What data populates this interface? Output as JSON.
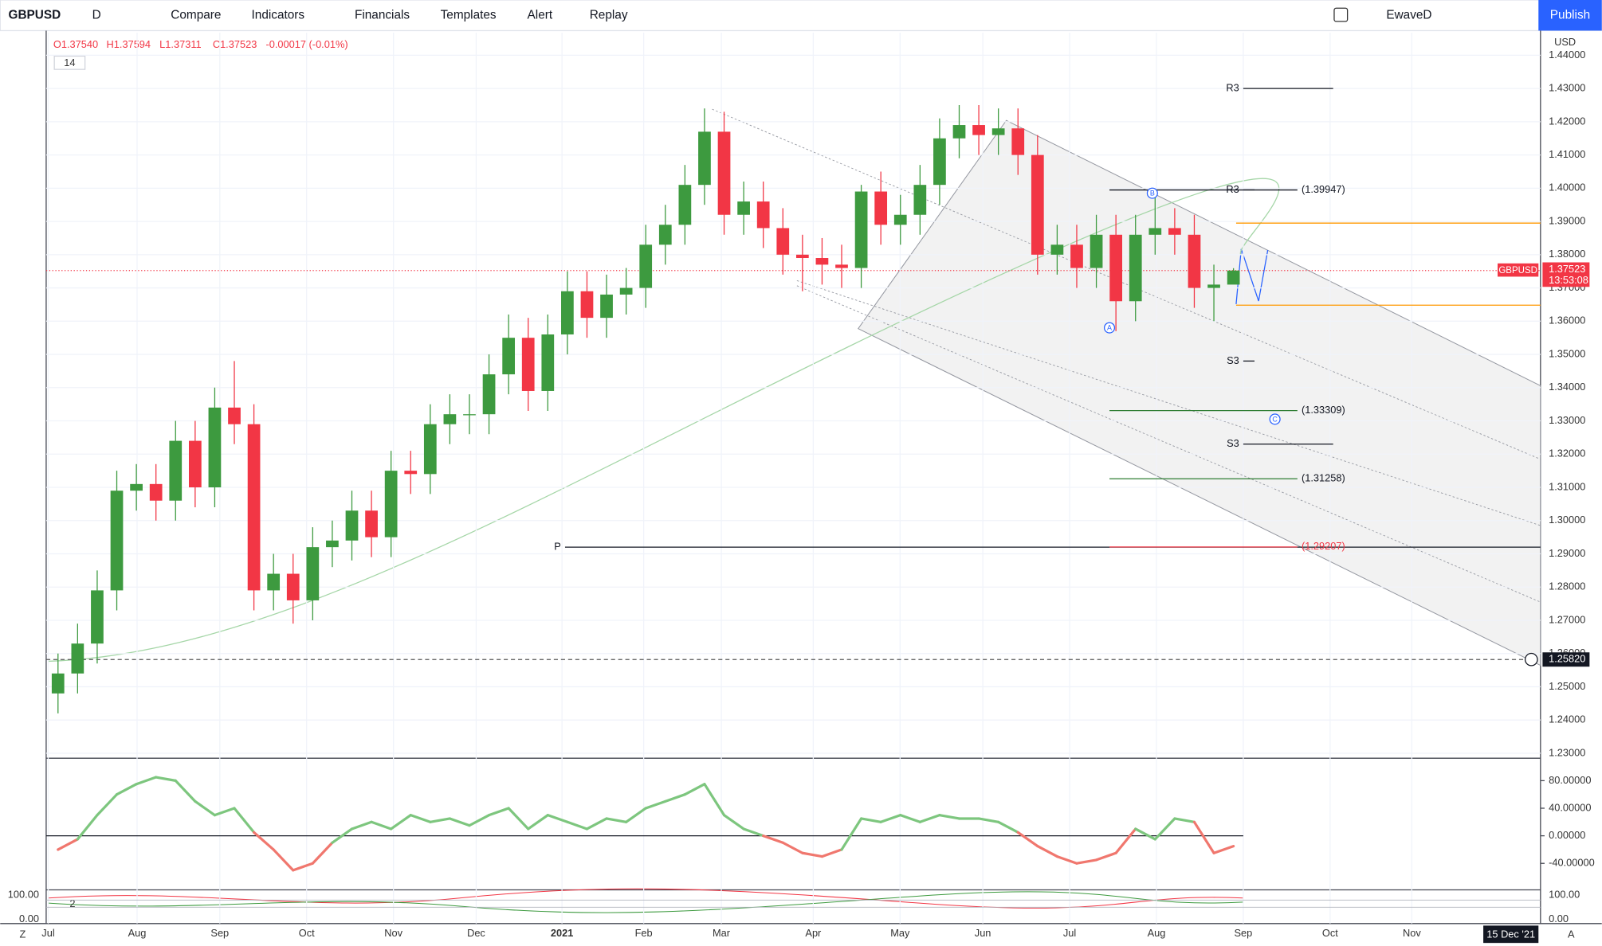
{
  "toolbar": {
    "symbol": "GBPUSD",
    "interval": "D",
    "buttons": [
      "Compare",
      "Indicators",
      "Financials",
      "Templates",
      "Alert",
      "Replay"
    ],
    "layout": "EwaveD",
    "publish": "Publish"
  },
  "chart_data": {
    "type": "candlestick",
    "legend": [
      "O1.37540",
      "H1.37594",
      "L1.37311",
      "C1.37523",
      "-0.00017 (-0.01%)"
    ],
    "indicator_badge": "14",
    "currency": "USD",
    "up_color": "#3d9a3f",
    "down_color": "#f23645",
    "categories": [
      null,
      null,
      null,
      null,
      null,
      null,
      null,
      null,
      null,
      null,
      null,
      null,
      null,
      null,
      null,
      null,
      null,
      null,
      null,
      null,
      null,
      null,
      null,
      null,
      null,
      null,
      null,
      null,
      null,
      null,
      null,
      null,
      null,
      null,
      null,
      null,
      null,
      null,
      null,
      null,
      null,
      null,
      null,
      null,
      null,
      null,
      null,
      null,
      null,
      null,
      null,
      null,
      null,
      null,
      null,
      null,
      null,
      null,
      null,
      null,
      null
    ],
    "open": [
      1.248,
      1.254,
      1.263,
      1.279,
      1.309,
      1.311,
      1.306,
      1.324,
      1.31,
      1.334,
      1.329,
      1.279,
      1.284,
      1.276,
      1.292,
      1.294,
      1.303,
      1.295,
      1.315,
      1.314,
      1.329,
      1.332,
      1.332,
      1.344,
      1.355,
      1.339,
      1.356,
      1.369,
      1.361,
      1.368,
      1.37,
      1.383,
      1.389,
      1.401,
      1.417,
      1.392,
      1.396,
      1.388,
      1.38,
      1.379,
      1.377,
      1.376,
      1.399,
      1.389,
      1.392,
      1.401,
      1.415,
      1.419,
      1.416,
      1.418,
      1.41,
      1.38,
      1.383,
      1.376,
      1.386,
      1.366,
      1.386,
      1.388,
      1.386,
      1.37,
      1.371
    ],
    "high": [
      1.26,
      1.269,
      1.285,
      1.315,
      1.317,
      1.317,
      1.33,
      1.33,
      1.34,
      1.348,
      1.335,
      1.29,
      1.29,
      1.298,
      1.3,
      1.309,
      1.309,
      1.321,
      1.321,
      1.335,
      1.338,
      1.338,
      1.35,
      1.362,
      1.361,
      1.362,
      1.375,
      1.375,
      1.374,
      1.376,
      1.389,
      1.395,
      1.407,
      1.424,
      1.423,
      1.402,
      1.402,
      1.394,
      1.386,
      1.385,
      1.383,
      1.401,
      1.405,
      1.398,
      1.407,
      1.421,
      1.425,
      1.425,
      1.424,
      1.424,
      1.416,
      1.389,
      1.389,
      1.392,
      1.392,
      1.392,
      1.398,
      1.394,
      1.392,
      1.377,
      1.37594
    ],
    "low": [
      1.242,
      1.248,
      1.257,
      1.273,
      1.303,
      1.3,
      1.3,
      1.304,
      1.304,
      1.323,
      1.273,
      1.273,
      1.269,
      1.27,
      1.286,
      1.288,
      1.289,
      1.289,
      1.308,
      1.308,
      1.323,
      1.326,
      1.326,
      1.338,
      1.333,
      1.333,
      1.35,
      1.355,
      1.355,
      1.362,
      1.364,
      1.377,
      1.383,
      1.395,
      1.386,
      1.386,
      1.382,
      1.374,
      1.369,
      1.371,
      1.37,
      1.37,
      1.383,
      1.383,
      1.386,
      1.395,
      1.409,
      1.41,
      1.41,
      1.404,
      1.374,
      1.374,
      1.37,
      1.37,
      1.357,
      1.36,
      1.38,
      1.38,
      1.364,
      1.36,
      1.37311
    ],
    "close": [
      1.254,
      1.263,
      1.279,
      1.309,
      1.311,
      1.306,
      1.324,
      1.31,
      1.334,
      1.329,
      1.279,
      1.284,
      1.276,
      1.292,
      1.294,
      1.303,
      1.295,
      1.315,
      1.314,
      1.329,
      1.332,
      1.332,
      1.344,
      1.355,
      1.339,
      1.356,
      1.369,
      1.361,
      1.368,
      1.37,
      1.383,
      1.389,
      1.401,
      1.417,
      1.392,
      1.396,
      1.388,
      1.38,
      1.379,
      1.377,
      1.376,
      1.399,
      1.389,
      1.392,
      1.401,
      1.415,
      1.419,
      1.416,
      1.418,
      1.41,
      1.38,
      1.383,
      1.376,
      1.386,
      1.366,
      1.386,
      1.388,
      1.386,
      1.37,
      1.371,
      1.37523
    ],
    "ylim": [
      1.2285,
      1.4468
    ],
    "yticks": [
      {
        "value": 1.44,
        "label": "1.44000"
      },
      {
        "value": 1.43,
        "label": "1.43000"
      },
      {
        "value": 1.42,
        "label": "1.42000"
      },
      {
        "value": 1.41,
        "label": "1.41000"
      },
      {
        "value": 1.4,
        "label": "1.40000"
      },
      {
        "value": 1.39,
        "label": "1.39000"
      },
      {
        "value": 1.38,
        "label": "1.38000"
      },
      {
        "value": 1.37,
        "label": "1.37000"
      },
      {
        "value": 1.36,
        "label": "1.36000"
      },
      {
        "value": 1.35,
        "label": "1.35000"
      },
      {
        "value": 1.34,
        "label": "1.34000"
      },
      {
        "value": 1.33,
        "label": "1.33000"
      },
      {
        "value": 1.32,
        "label": "1.32000"
      },
      {
        "value": 1.31,
        "label": "1.31000"
      },
      {
        "value": 1.3,
        "label": "1.30000"
      },
      {
        "value": 1.29,
        "label": "1.29000"
      },
      {
        "value": 1.28,
        "label": "1.28000"
      },
      {
        "value": 1.27,
        "label": "1.27000"
      },
      {
        "value": 1.26,
        "label": "1.26000"
      },
      {
        "value": 1.25,
        "label": "1.25000"
      },
      {
        "value": 1.24,
        "label": "1.24000"
      },
      {
        "value": 1.23,
        "label": "1.23000"
      }
    ],
    "xticks": [
      "Jul",
      "Aug",
      "Sep",
      "Oct",
      "Nov",
      "Dec",
      "2021",
      "Feb",
      "Mar",
      "Apr",
      "May",
      "Jun",
      "Jul",
      "Aug",
      "Sep",
      "Oct",
      "Nov"
    ],
    "last_price": {
      "symbol": "GBPUSD",
      "value": 1.37523,
      "label": "1.37523",
      "countdown": "13:53:08"
    },
    "crosshair": {
      "value": 1.2582,
      "label": "1.25820"
    },
    "levels": [
      {
        "label": "R3",
        "value": 1.43
      },
      {
        "label": "R3",
        "value": 1.3995
      },
      {
        "label": "S3",
        "value": 1.348
      },
      {
        "label": "S3",
        "value": 1.323
      },
      {
        "label": "P",
        "value": 1.292
      },
      {
        "label": "(1.39947)",
        "value": 1.39947
      },
      {
        "label": "(1.33309)",
        "value": 1.33309
      },
      {
        "label": "(1.31258)",
        "value": 1.31258
      },
      {
        "label": "(1.29207)",
        "value": 1.29207
      }
    ],
    "orange_lines": [
      1.3895,
      1.3648
    ],
    "waves": [
      {
        "label": "A",
        "value": 1.358
      },
      {
        "label": "B",
        "value": 1.3985
      },
      {
        "label": "C",
        "value": 1.3305
      }
    ],
    "oscillator": {
      "values": [
        -20,
        -5,
        30,
        60,
        75,
        85,
        80,
        50,
        30,
        40,
        5,
        -20,
        -50,
        -40,
        -10,
        10,
        20,
        10,
        30,
        20,
        25,
        15,
        30,
        40,
        10,
        30,
        20,
        10,
        25,
        20,
        40,
        50,
        60,
        75,
        30,
        10,
        0,
        -10,
        -25,
        -30,
        -20,
        25,
        20,
        30,
        20,
        30,
        25,
        25,
        20,
        5,
        -15,
        -30,
        -40,
        -35,
        -25,
        10,
        -5,
        25,
        20,
        -25,
        -15
      ],
      "ylim": [
        -75.5,
        109.6
      ],
      "yticks": [
        {
          "value": 80,
          "label": "80.00000"
        },
        {
          "value": 40,
          "label": "40.00000"
        },
        {
          "value": 0,
          "label": "0.00000"
        },
        {
          "value": -40,
          "label": "-40.00000"
        }
      ],
      "pos_color": "#7dc67e",
      "neg_color": "#f0776e"
    },
    "stoch": {
      "badge": "2",
      "yticks": [
        {
          "value": 100,
          "label": "100.00"
        },
        {
          "value": 0,
          "label": "0.00"
        }
      ]
    },
    "date_label": "15 Dec '21",
    "left_button": "Z",
    "right_button": "A"
  }
}
